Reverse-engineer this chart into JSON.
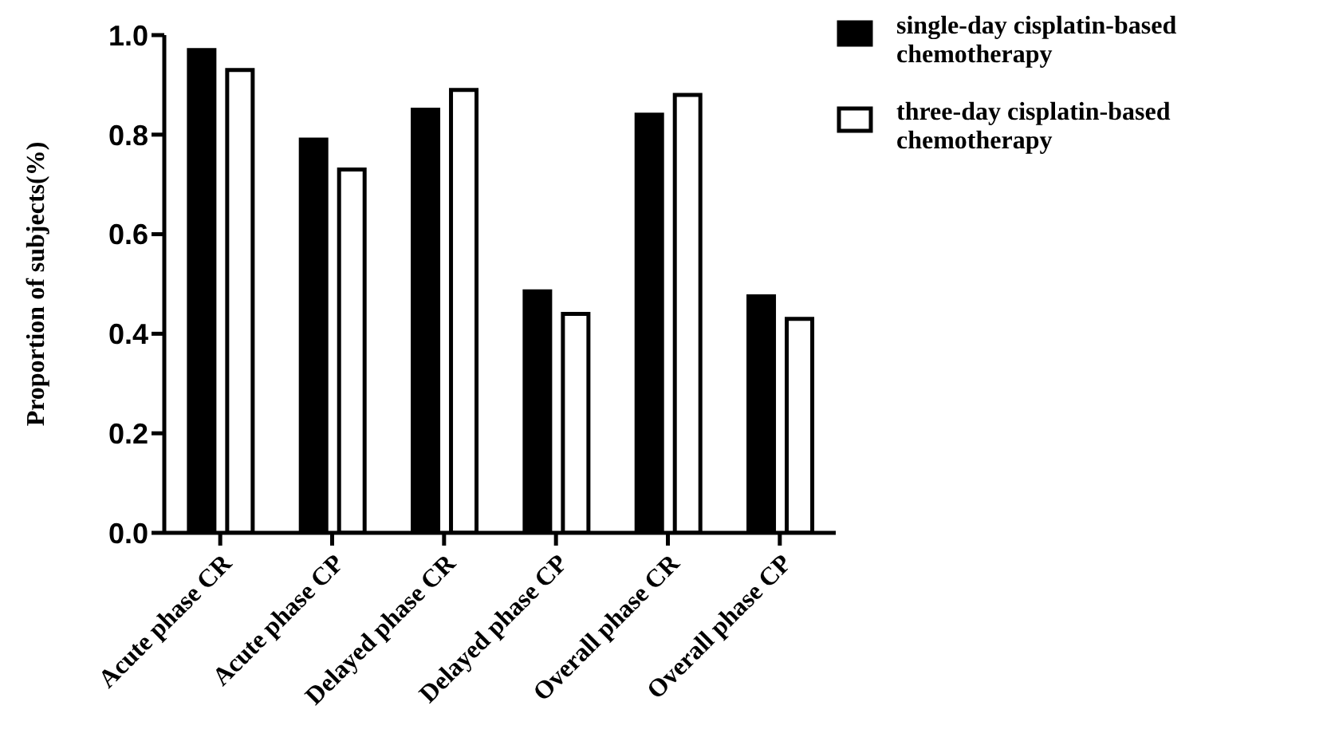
{
  "chart_data": {
    "type": "bar",
    "ylabel": "Proportion of subjects(%)",
    "categories": [
      "Acute phase CR",
      "Acute phase CP",
      "Delayed phase CR",
      "Delayed phase CP",
      "Overall phase CR",
      "Overall phase CP"
    ],
    "series": [
      {
        "name": "single-day cisplatin-based chemotherapy",
        "color": "#000000",
        "values": [
          0.97,
          0.79,
          0.85,
          0.485,
          0.84,
          0.475
        ]
      },
      {
        "name": "three-day cisplatin-based chemotherapy",
        "color": "#ffffff",
        "values": [
          0.93,
          0.73,
          0.89,
          0.44,
          0.88,
          0.43
        ]
      }
    ],
    "ylim": [
      0,
      1.0
    ],
    "yticks": [
      {
        "value": 0,
        "label": "0.0"
      },
      0.2,
      0.4,
      0.6,
      0.8,
      {
        "value": 1,
        "label": "1.0"
      }
    ],
    "grid": false,
    "legend": "top right"
  }
}
